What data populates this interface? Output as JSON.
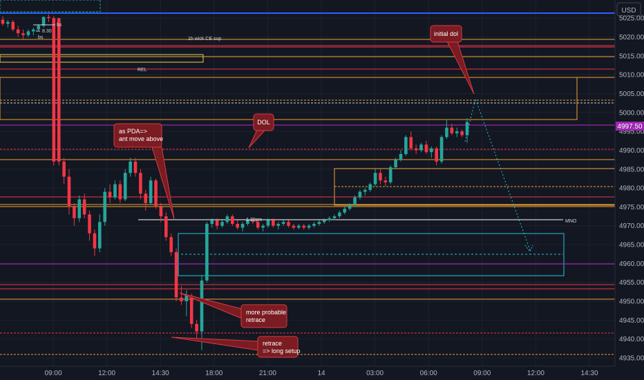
{
  "chart_data": {
    "type": "candlestick",
    "currency": "USD",
    "current_price": "4997.50",
    "y_ticks": [
      5025,
      5020,
      5015,
      5010,
      5005,
      5000,
      4995,
      4990,
      4985,
      4980,
      4975,
      4970,
      4965,
      4960,
      4955,
      4950,
      4945,
      4940,
      4935
    ],
    "y_tick_labels": [
      "5025.00",
      "5020.00",
      "5015.00",
      "5010.00",
      "5005.00",
      "5000.00",
      "4995.00",
      "4990.00",
      "4985.00",
      "4980.00",
      "4975.00",
      "4970.00",
      "4965.00",
      "4960.00",
      "4955.00",
      "4950.00",
      "4945.00",
      "4940.00",
      "4935.00"
    ],
    "x_ticks": [
      "09:00",
      "12:00",
      "14:30",
      "18:00",
      "21:00",
      "14",
      "03:00",
      "06:00",
      "09:00",
      "12:00",
      "14:30"
    ],
    "ylim": [
      4932.8,
      5029.8
    ],
    "colors": {
      "up": "#26a69a",
      "down": "#f23645"
    },
    "candles": [
      [
        5024.6,
        5025.5,
        5023.0,
        5023.5
      ],
      [
        5023.5,
        5024.5,
        5022.5,
        5024.0
      ],
      [
        5024.0,
        5024.5,
        5021.5,
        5022.0
      ],
      [
        5022.0,
        5023.0,
        5020.0,
        5021.0
      ],
      [
        5021.0,
        5022.0,
        5019.5,
        5020.5
      ],
      [
        5020.5,
        5022.0,
        5020.0,
        5021.5
      ],
      [
        5021.5,
        5022.5,
        5020.5,
        5022.0
      ],
      [
        5022.0,
        5023.5,
        5021.5,
        5023.0
      ],
      [
        5023.0,
        5025.5,
        5022.5,
        5025.3
      ],
      [
        5025.3,
        5026.0,
        5024.0,
        5025.0
      ],
      [
        5025.0,
        5025.5,
        4986.0,
        4987.0
      ],
      [
        5025.0,
        5025.0,
        4986.0,
        4987.0
      ],
      [
        4987.0,
        4988.0,
        4981.0,
        4983.0
      ],
      [
        4983.0,
        4985.0,
        4973.0,
        4975.0
      ],
      [
        4975.0,
        4976.0,
        4970.0,
        4972.0
      ],
      [
        4972.0,
        4978.0,
        4971.0,
        4977.0
      ],
      [
        4977.0,
        4978.5,
        4972.0,
        4973.0
      ],
      [
        4973.0,
        4974.0,
        4966.0,
        4968.0
      ],
      [
        4968.0,
        4969.0,
        4962.0,
        4964.0
      ],
      [
        4964.0,
        4973.0,
        4963.0,
        4971.0
      ],
      [
        4971.0,
        4980.0,
        4970.0,
        4979.0
      ],
      [
        4979.0,
        4981.0,
        4976.0,
        4977.5
      ],
      [
        4977.5,
        4982.0,
        4977.0,
        4981.0
      ],
      [
        4981.0,
        4982.0,
        4976.0,
        4977.0
      ],
      [
        4977.0,
        4985.0,
        4976.5,
        4984.0
      ],
      [
        4984.0,
        4988.0,
        4983.0,
        4987.0
      ],
      [
        4987.0,
        4988.0,
        4983.0,
        4984.0
      ],
      [
        4984.0,
        4985.0,
        4977.0,
        4978.5
      ],
      [
        4978.5,
        4979.5,
        4974.0,
        4976.0
      ],
      [
        4976.0,
        4983.0,
        4975.5,
        4982.0
      ],
      [
        4982.0,
        4982.5,
        4974.5,
        4975.0
      ],
      [
        4975.0,
        4976.0,
        4971.0,
        4972.5
      ],
      [
        4972.5,
        4973.5,
        4966.0,
        4967.0
      ],
      [
        4967.0,
        4968.0,
        4962.0,
        4963.0
      ],
      [
        4963.0,
        4964.0,
        4950.0,
        4951.0
      ],
      [
        4951.0,
        4954.0,
        4949.0,
        4950.0
      ],
      [
        4950.0,
        4953.0,
        4946.0,
        4951.5
      ],
      [
        4951.5,
        4952.0,
        4943.0,
        4944.0
      ],
      [
        4944.0,
        4945.0,
        4940.0,
        4942.0
      ],
      [
        4942.0,
        4957.0,
        4937.0,
        4955.5
      ],
      [
        4955.5,
        4971.0,
        4955.0,
        4970.5
      ],
      [
        4970.5,
        4972.0,
        4969.5,
        4971.5
      ],
      [
        4971.5,
        4972.0,
        4969.0,
        4970.0
      ],
      [
        4970.0,
        4971.5,
        4969.5,
        4971.0
      ],
      [
        4971.0,
        4973.0,
        4970.5,
        4972.5
      ],
      [
        4972.5,
        4973.0,
        4970.0,
        4970.5
      ],
      [
        4970.5,
        4971.5,
        4969.0,
        4969.5
      ],
      [
        4969.5,
        4971.0,
        4968.5,
        4970.5
      ],
      [
        4970.5,
        4972.0,
        4970.0,
        4971.5
      ],
      [
        4971.5,
        4972.0,
        4970.5,
        4971.0
      ],
      [
        4971.0,
        4971.5,
        4969.0,
        4969.5
      ],
      [
        4969.5,
        4970.5,
        4968.5,
        4970.0
      ],
      [
        4970.0,
        4972.0,
        4969.5,
        4971.5
      ],
      [
        4971.5,
        4972.0,
        4969.5,
        4970.0
      ],
      [
        4970.0,
        4971.0,
        4969.0,
        4970.5
      ],
      [
        4970.5,
        4971.5,
        4970.0,
        4971.0
      ],
      [
        4971.0,
        4971.5,
        4969.5,
        4970.0
      ],
      [
        4970.0,
        4970.5,
        4969.0,
        4969.5
      ],
      [
        4969.5,
        4970.5,
        4969.0,
        4970.0
      ],
      [
        4970.0,
        4970.5,
        4969.0,
        4969.5
      ],
      [
        4969.5,
        4970.5,
        4969.0,
        4970.0
      ],
      [
        4970.0,
        4971.0,
        4969.5,
        4970.5
      ],
      [
        4970.5,
        4971.5,
        4970.0,
        4971.0
      ],
      [
        4971.0,
        4972.0,
        4970.5,
        4971.5
      ],
      [
        4971.5,
        4972.5,
        4971.0,
        4972.0
      ],
      [
        4972.0,
        4973.0,
        4971.5,
        4972.5
      ],
      [
        4972.5,
        4974.0,
        4972.0,
        4973.5
      ],
      [
        4973.5,
        4975.0,
        4973.0,
        4974.5
      ],
      [
        4974.5,
        4976.0,
        4974.0,
        4975.5
      ],
      [
        4975.5,
        4978.0,
        4975.0,
        4977.5
      ],
      [
        4977.5,
        4979.5,
        4977.0,
        4979.0
      ],
      [
        4979.0,
        4980.0,
        4978.0,
        4979.5
      ],
      [
        4979.5,
        4981.5,
        4979.0,
        4981.0
      ],
      [
        4981.0,
        4985.0,
        4980.5,
        4984.0
      ],
      [
        4984.0,
        4985.0,
        4981.0,
        4982.0
      ],
      [
        4982.0,
        4983.0,
        4980.5,
        4981.5
      ],
      [
        4981.5,
        4986.0,
        4981.0,
        4985.5
      ],
      [
        4985.5,
        4988.0,
        4985.0,
        4987.5
      ],
      [
        4987.5,
        4990.0,
        4987.0,
        4989.0
      ],
      [
        4989.0,
        4994.0,
        4988.5,
        4993.5
      ],
      [
        4993.5,
        4995.0,
        4990.0,
        4990.5
      ],
      [
        4990.5,
        4991.5,
        4989.0,
        4990.0
      ],
      [
        4990.0,
        4992.0,
        4989.5,
        4991.5
      ],
      [
        4991.5,
        4992.5,
        4989.0,
        4989.5
      ],
      [
        4989.5,
        4991.0,
        4988.0,
        4990.5
      ],
      [
        4990.5,
        4991.0,
        4986.0,
        4987.0
      ],
      [
        4987.0,
        4994.0,
        4986.5,
        4993.5
      ],
      [
        4993.5,
        4998.0,
        4993.0,
        4996.0
      ],
      [
        4996.0,
        4997.0,
        4994.0,
        4994.5
      ],
      [
        4994.5,
        4996.0,
        4993.5,
        4995.0
      ],
      [
        4995.0,
        4995.5,
        4993.5,
        4994.0
      ],
      [
        4994.0,
        4998.5,
        4992.0,
        4997.5
      ]
    ]
  },
  "axis": {
    "currency": "USD"
  },
  "labels": {
    "bs1": "bs",
    "b830": "8.30",
    "bs2": "bs",
    "wick_ce": "1h wick CE sup",
    "rel": "REL",
    "time_130": "1.30pm",
    "mno": "MNO"
  },
  "callouts": {
    "initial_dol": "initial dol",
    "dol": "DOL",
    "pda_1": "as PDA=>",
    "pda_2": "ant move above",
    "retrace_prob_1": "more probable",
    "retrace_prob_2": "retrace",
    "retrace_long_1": "retrace",
    "retrace_long_2": "=> long setup"
  }
}
